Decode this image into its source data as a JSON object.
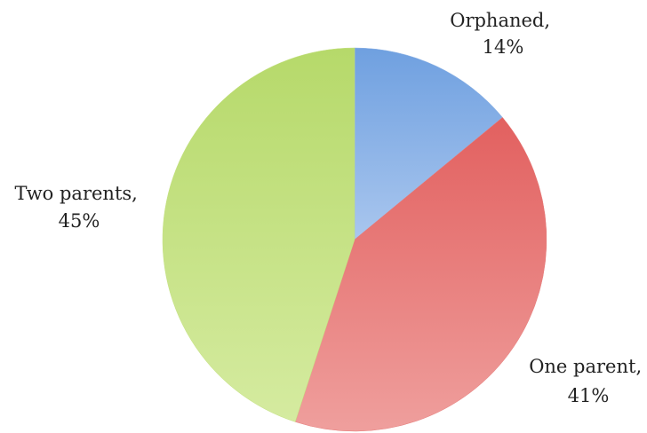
{
  "chart_data": {
    "type": "pie",
    "title": "",
    "slices": [
      {
        "label": "Orphaned",
        "percent_label": "14%",
        "value": 14,
        "color": "#8fb4e6"
      },
      {
        "label": "One parent",
        "percent_label": "41%",
        "value": 41,
        "color": "#e67d7b"
      },
      {
        "label": "Two parents",
        "percent_label": "45%",
        "value": 45,
        "color": "#c3e07f"
      }
    ]
  }
}
